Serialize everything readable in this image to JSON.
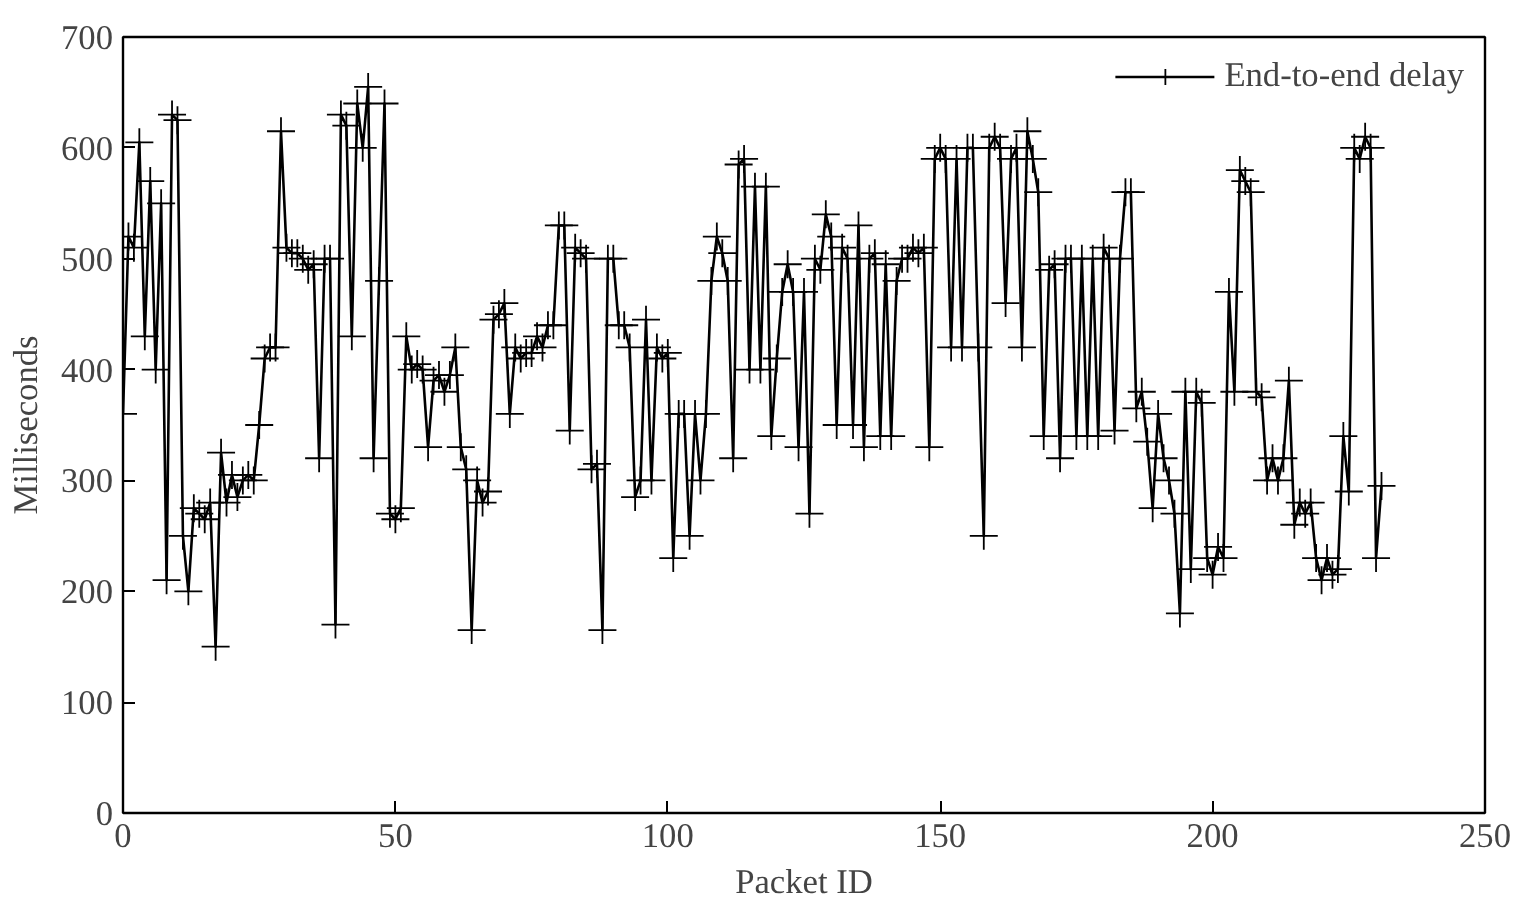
{
  "chart_data": {
    "type": "line",
    "xlabel": "Packet ID",
    "ylabel": "Milliseconds",
    "xlim": [
      0,
      250
    ],
    "ylim": [
      0,
      700
    ],
    "xticks": [
      0,
      50,
      100,
      150,
      200,
      250
    ],
    "yticks": [
      0,
      100,
      200,
      300,
      400,
      500,
      600,
      700
    ],
    "grid": false,
    "legend": "top right",
    "marker": "cross",
    "line_style": "solid",
    "x": [
      0,
      1,
      2,
      3,
      4,
      5,
      6,
      7,
      8,
      9,
      10,
      11,
      12,
      13,
      14,
      15,
      16,
      17,
      18,
      19,
      20,
      21,
      22,
      23,
      24,
      25,
      26,
      27,
      28,
      29,
      30,
      31,
      32,
      33,
      34,
      35,
      36,
      37,
      38,
      39,
      40,
      41,
      42,
      43,
      44,
      45,
      46,
      47,
      48,
      49,
      50,
      51,
      52,
      53,
      54,
      55,
      56,
      57,
      58,
      59,
      60,
      61,
      62,
      63,
      64,
      65,
      66,
      67,
      68,
      69,
      70,
      71,
      72,
      73,
      74,
      75,
      76,
      77,
      78,
      79,
      80,
      81,
      82,
      83,
      84,
      85,
      86,
      87,
      88,
      89,
      90,
      91,
      92,
      93,
      94,
      95,
      96,
      97,
      98,
      99,
      100,
      101,
      102,
      103,
      104,
      105,
      106,
      107,
      108,
      109,
      110,
      111,
      112,
      113,
      114,
      115,
      116,
      117,
      118,
      119,
      120,
      121,
      122,
      123,
      124,
      125,
      126,
      127,
      128,
      129,
      130,
      131,
      132,
      133,
      134,
      135,
      136,
      137,
      138,
      139,
      140,
      141,
      142,
      143,
      144,
      145,
      146,
      147,
      148,
      149,
      150,
      151,
      152,
      153,
      154,
      155,
      156,
      157,
      158,
      159,
      160,
      161,
      162,
      163,
      164,
      165,
      166,
      167,
      168,
      169,
      170,
      171,
      172,
      173,
      174,
      175,
      176,
      177,
      178,
      179,
      180,
      181,
      182,
      183,
      184,
      185,
      186,
      187,
      188,
      189,
      190,
      191,
      192,
      193,
      194,
      195,
      196,
      197,
      198,
      199,
      200,
      201,
      202,
      203,
      204,
      205,
      206,
      207,
      208,
      209,
      210,
      211,
      212,
      213,
      214,
      215,
      216,
      217,
      218,
      219,
      220,
      221,
      222,
      223,
      224,
      225,
      226,
      227,
      228,
      229,
      230,
      231
    ],
    "series": [
      {
        "name": "End-to-end delay",
        "color": "#000000",
        "values": [
          360,
          520,
          510,
          605,
          430,
          570,
          400,
          550,
          210,
          630,
          625,
          250,
          200,
          275,
          270,
          265,
          280,
          150,
          325,
          280,
          305,
          285,
          300,
          305,
          300,
          350,
          410,
          420,
          420,
          615,
          510,
          505,
          505,
          500,
          490,
          495,
          320,
          500,
          500,
          170,
          630,
          620,
          430,
          640,
          600,
          655,
          320,
          480,
          640,
          270,
          265,
          275,
          430,
          400,
          405,
          400,
          330,
          390,
          395,
          380,
          395,
          420,
          330,
          310,
          165,
          300,
          280,
          290,
          445,
          450,
          460,
          360,
          420,
          410,
          415,
          415,
          430,
          420,
          440,
          440,
          530,
          530,
          345,
          510,
          505,
          500,
          310,
          315,
          165,
          500,
          500,
          440,
          440,
          420,
          285,
          300,
          445,
          300,
          420,
          410,
          415,
          230,
          360,
          360,
          250,
          360,
          300,
          360,
          480,
          520,
          505,
          480,
          320,
          585,
          590,
          400,
          565,
          400,
          565,
          340,
          410,
          470,
          495,
          470,
          330,
          470,
          270,
          500,
          490,
          540,
          520,
          350,
          510,
          500,
          350,
          530,
          330,
          500,
          505,
          340,
          495,
          340,
          480,
          500,
          500,
          510,
          505,
          510,
          330,
          590,
          600,
          590,
          420,
          590,
          420,
          600,
          600,
          420,
          250,
          600,
          610,
          600,
          460,
          590,
          600,
          420,
          615,
          590,
          560,
          340,
          490,
          495,
          320,
          500,
          500,
          340,
          500,
          340,
          500,
          340,
          510,
          500,
          345,
          500,
          560,
          560,
          365,
          380,
          335,
          275,
          360,
          320,
          300,
          270,
          180,
          380,
          220,
          380,
          370,
          230,
          215,
          240,
          230,
          470,
          380,
          580,
          570,
          560,
          380,
          375,
          300,
          320,
          300,
          320,
          390,
          260,
          280,
          270,
          280,
          230,
          210,
          230,
          215,
          220,
          340,
          290,
          600,
          590,
          610,
          600,
          230,
          295
        ]
      }
    ]
  }
}
